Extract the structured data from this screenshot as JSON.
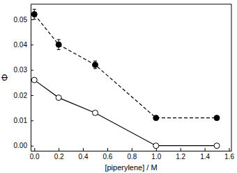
{
  "chart_data": {
    "type": "line",
    "x_label": "[piperylene] / M",
    "y_label": "Φ",
    "x": [
      0,
      0.2,
      0.5,
      1.0,
      1.5
    ],
    "series": [
      {
        "color": "#000000",
        "marker": "circle",
        "line_style": "dashed",
        "values": [
          0.052,
          0.04,
          0.032,
          0.011,
          0.011
        ],
        "errors": [
          0.002,
          0.002,
          0.0015,
          0.0005,
          0.0005
        ]
      },
      {
        "color": "#000000",
        "marker": "open-circle",
        "line_style": "solid",
        "values": [
          0.026,
          0.019,
          0.013,
          0,
          0
        ]
      }
    ],
    "xlim": [
      -0.03,
      1.62
    ],
    "xticks": [
      {
        "value": 0,
        "label": "0.0"
      },
      0.2,
      0.4,
      0.6,
      0.8,
      {
        "value": 1,
        "label": "1.0"
      },
      1.2,
      1.4,
      1.6
    ],
    "ylim": [
      -0.002,
      0.056
    ],
    "yticks": [
      {
        "value": 0,
        "label": "0.00"
      },
      0.01,
      0.02,
      0.03,
      0.04,
      0.05
    ],
    "grid": false
  }
}
